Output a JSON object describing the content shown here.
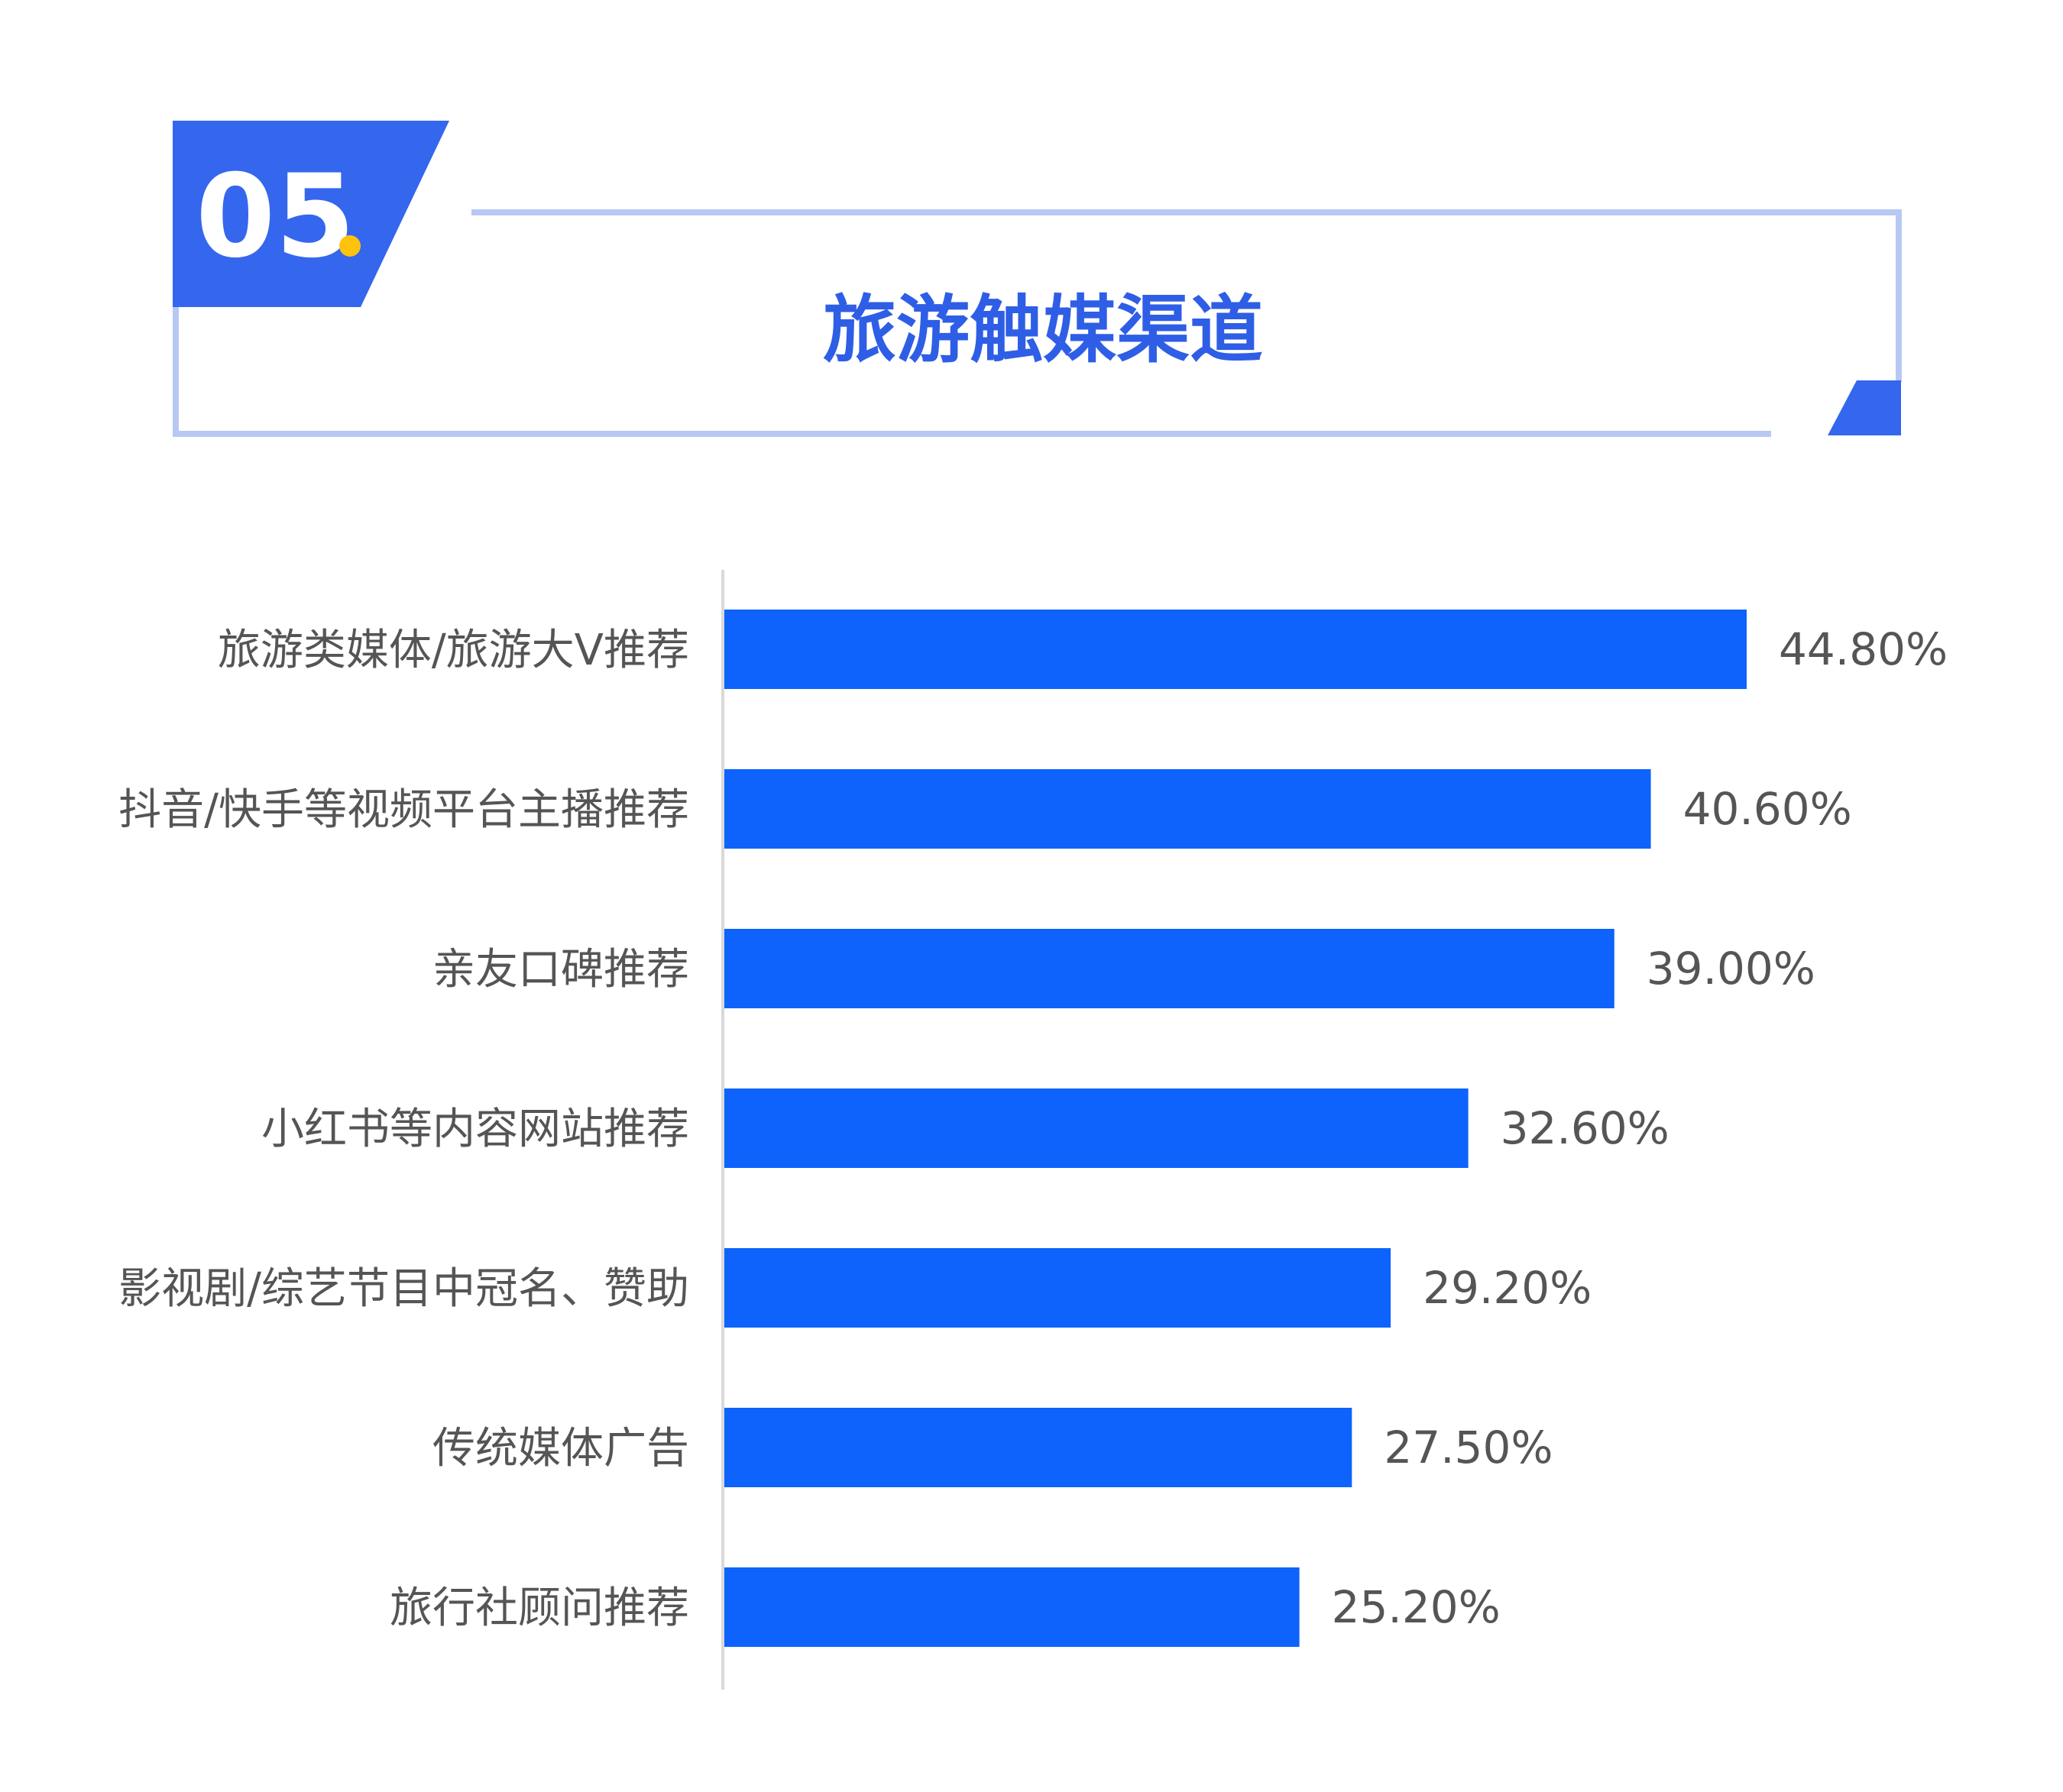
{
  "header": {
    "section_number": "05",
    "section_dot": ".",
    "title": "旅游触媒渠道"
  },
  "colors": {
    "accent": "#3566ee",
    "frame": "#b8c8f4",
    "bar": "#0d63fb",
    "dot": "#ffc20e",
    "title": "#2f5ee6",
    "label": "#555555",
    "axis": "#d9d9d9"
  },
  "chart_data": {
    "type": "bar",
    "orientation": "horizontal",
    "title": "旅游触媒渠道",
    "categories": [
      "旅游类媒体/旅游大V推荐",
      "抖音/快手等视频平台主播推荐",
      "亲友口碑推荐",
      "小红书等内容网站推荐",
      "影视剧/综艺节目中冠名、赞助",
      "传统媒体广告",
      "旅行社顾问推荐"
    ],
    "values": [
      44.8,
      40.6,
      39.0,
      32.6,
      29.2,
      27.5,
      25.2
    ],
    "value_labels": [
      "44.80%",
      "40.60%",
      "39.00%",
      "32.60%",
      "29.20%",
      "27.50%",
      "25.20%"
    ],
    "unit": "%",
    "xlim": [
      0,
      50
    ],
    "grid": false,
    "legend": "none"
  }
}
